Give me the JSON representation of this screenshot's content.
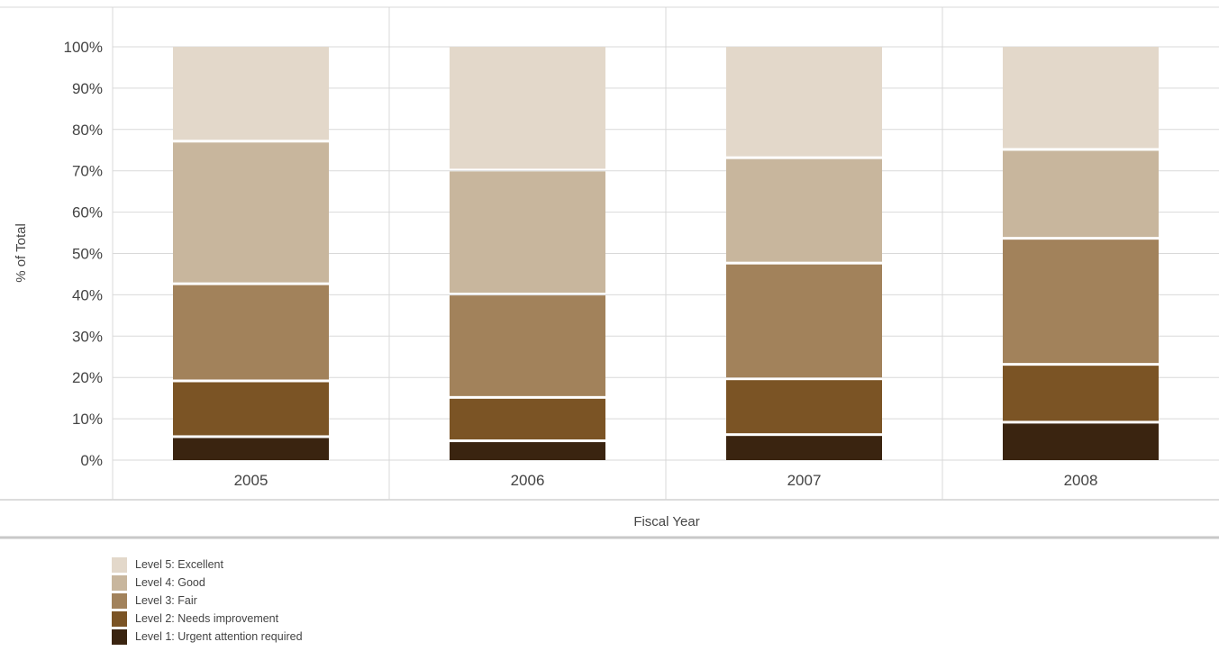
{
  "chart_data": {
    "type": "bar",
    "stacked": true,
    "xlabel": "Fiscal Year",
    "ylabel": "% of Total",
    "ylim": [
      0,
      100
    ],
    "yticks": [
      0,
      10,
      20,
      30,
      40,
      50,
      60,
      70,
      80,
      90,
      100
    ],
    "ytick_suffix": "%",
    "grid": true,
    "legend_position": "bottom-left",
    "categories": [
      "2005",
      "2006",
      "2007",
      "2008"
    ],
    "series": [
      {
        "name": "Level 1: Urgent attention required",
        "color": "#3a2410",
        "values": [
          6,
          5,
          6.5,
          9.5
        ]
      },
      {
        "name": "Level 2: Needs improvement",
        "color": "#7b5425",
        "values": [
          13.5,
          10.5,
          13.5,
          14
        ]
      },
      {
        "name": "Level 3: Fair",
        "color": "#a2825b",
        "values": [
          23.5,
          25,
          28,
          30.5
        ]
      },
      {
        "name": "Level 4: Good",
        "color": "#c8b69d",
        "values": [
          34.5,
          30,
          25.5,
          21.5
        ]
      },
      {
        "name": "Level 5: Excellent",
        "color": "#e3d8ca",
        "values": [
          22.5,
          29.5,
          26.5,
          24.5
        ]
      }
    ]
  }
}
